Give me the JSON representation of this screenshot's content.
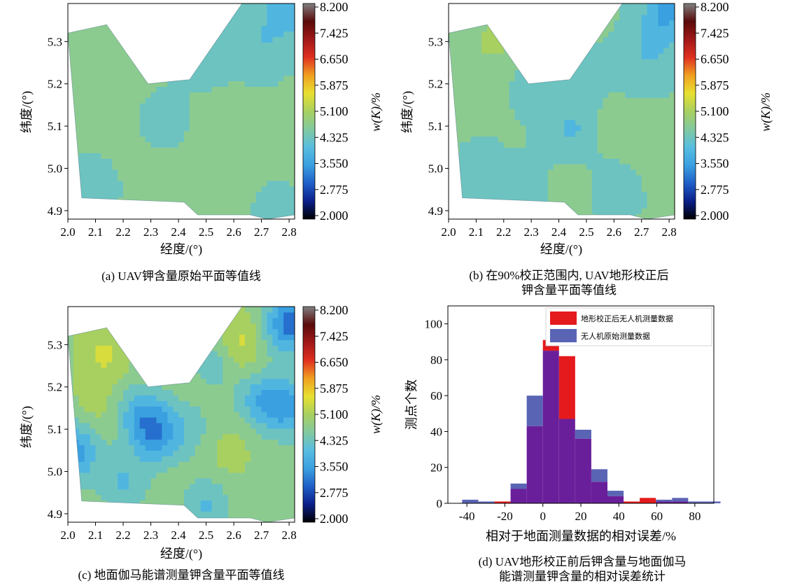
{
  "colors": {
    "colormap_stops": [
      "#000000",
      "#0b1f8a",
      "#1f5fc8",
      "#3aa0e0",
      "#57bde0",
      "#82c9a0",
      "#a8d060",
      "#e8e030",
      "#f0a020",
      "#e03020",
      "#a01818",
      "#5a0a0a",
      "#808080"
    ],
    "contour_line": "#456e7d",
    "hist_corrected": "#e41a1c",
    "hist_original": "#5a64b4",
    "hist_overlap": "#6a1f9a"
  },
  "panels": [
    {
      "caption": "(a) UAV钾含量原始平面等值线",
      "xlabel": "经度/(°)",
      "ylabel": "纬度/(°)",
      "cblabel": "w(K)/%",
      "xticks": [
        "2.0",
        "2.1",
        "2.2",
        "2.3",
        "2.4",
        "2.5",
        "2.6",
        "2.7",
        "2.8"
      ],
      "yticks": [
        "4.9",
        "5.0",
        "5.1",
        "5.2",
        "5.3"
      ],
      "cbticks": [
        "8.200",
        "7.425",
        "6.650",
        "5.875",
        "5.100",
        "4.325",
        "3.550",
        "2.775",
        "2.000"
      ]
    },
    {
      "caption": "(b) 在90%校正范围内, UAV地形校正后",
      "caption2": "钾含量平面等值线",
      "xlabel": "经度/(°)",
      "ylabel": "纬度/(°)",
      "cblabel": "w(K)/%",
      "xticks": [
        "2.0",
        "2.1",
        "2.2",
        "2.3",
        "2.4",
        "2.5",
        "2.6",
        "2.7",
        "2.8"
      ],
      "yticks": [
        "4.9",
        "5.0",
        "5.1",
        "5.2",
        "5.3"
      ],
      "cbticks": [
        "8.200",
        "7.425",
        "6.650",
        "5.875",
        "5.100",
        "4.325",
        "3.550",
        "2.775",
        "2.000"
      ]
    },
    {
      "caption": "(c) 地面伽马能谱测量钾含量平面等值线",
      "xlabel": "经度/(°)",
      "ylabel": "纬度/(°)",
      "cblabel": "w(K)/%",
      "xticks": [
        "2.0",
        "2.1",
        "2.2",
        "2.3",
        "2.4",
        "2.5",
        "2.6",
        "2.7",
        "2.8"
      ],
      "yticks": [
        "4.9",
        "5.0",
        "5.1",
        "5.2",
        "5.3"
      ],
      "cbticks": [
        "8.200",
        "7.425",
        "6.650",
        "5.875",
        "5.100",
        "4.325",
        "3.550",
        "2.775",
        "2.000"
      ]
    }
  ],
  "chart_data": [
    {
      "type": "heatmap",
      "panel": "a",
      "x_range": [
        2.0,
        2.82
      ],
      "y_range": [
        4.88,
        5.39
      ],
      "z_range": [
        2.0,
        8.2
      ],
      "boundary": [
        [
          2.0,
          5.32
        ],
        [
          2.14,
          5.34
        ],
        [
          2.29,
          5.2
        ],
        [
          2.44,
          5.21
        ],
        [
          2.63,
          5.39
        ],
        [
          2.82,
          5.39
        ],
        [
          2.82,
          4.89
        ],
        [
          2.72,
          4.88
        ],
        [
          2.66,
          4.89
        ],
        [
          2.47,
          4.89
        ],
        [
          2.42,
          4.92
        ],
        [
          2.05,
          4.93
        ]
      ],
      "z_base": 4.55,
      "features": [
        {
          "x": 2.17,
          "y": 5.25,
          "value": 4.7
        },
        {
          "x": 2.6,
          "y": 5.05,
          "value": 4.75
        },
        {
          "x": 2.35,
          "y": 5.12,
          "value": 4.45
        },
        {
          "x": 2.5,
          "y": 5.28,
          "value": 4.35
        },
        {
          "x": 2.08,
          "y": 4.95,
          "value": 4.4
        },
        {
          "x": 2.8,
          "y": 5.38,
          "value": 3.9
        },
        {
          "x": 2.7,
          "y": 5.3,
          "value": 4.2
        },
        {
          "x": 2.55,
          "y": 4.95,
          "value": 4.6
        },
        {
          "x": 2.75,
          "y": 4.9,
          "value": 4.45
        }
      ]
    },
    {
      "type": "heatmap",
      "panel": "b",
      "x_range": [
        2.0,
        2.82
      ],
      "y_range": [
        4.88,
        5.39
      ],
      "z_range": [
        2.0,
        8.2
      ],
      "boundary": [
        [
          2.0,
          5.32
        ],
        [
          2.14,
          5.34
        ],
        [
          2.29,
          5.2
        ],
        [
          2.44,
          5.21
        ],
        [
          2.63,
          5.39
        ],
        [
          2.82,
          5.39
        ],
        [
          2.82,
          4.89
        ],
        [
          2.72,
          4.88
        ],
        [
          2.66,
          4.89
        ],
        [
          2.47,
          4.89
        ],
        [
          2.42,
          4.92
        ],
        [
          2.05,
          4.93
        ]
      ],
      "z_base": 4.55,
      "features": [
        {
          "x": 2.16,
          "y": 5.3,
          "value": 5.0
        },
        {
          "x": 2.45,
          "y": 5.09,
          "value": 4.1
        },
        {
          "x": 2.33,
          "y": 5.2,
          "value": 4.3
        },
        {
          "x": 2.62,
          "y": 5.1,
          "value": 4.85
        },
        {
          "x": 2.5,
          "y": 5.2,
          "value": 4.4
        },
        {
          "x": 2.75,
          "y": 5.3,
          "value": 4.2
        },
        {
          "x": 2.8,
          "y": 5.38,
          "value": 3.7
        },
        {
          "x": 2.68,
          "y": 5.23,
          "value": 4.3
        },
        {
          "x": 2.12,
          "y": 4.99,
          "value": 4.4
        },
        {
          "x": 2.3,
          "y": 4.95,
          "value": 4.4
        },
        {
          "x": 2.6,
          "y": 4.96,
          "value": 4.3
        },
        {
          "x": 2.75,
          "y": 5.05,
          "value": 4.75
        },
        {
          "x": 2.45,
          "y": 4.97,
          "value": 4.7
        }
      ]
    },
    {
      "type": "heatmap",
      "panel": "c",
      "x_range": [
        2.0,
        2.82
      ],
      "y_range": [
        4.88,
        5.39
      ],
      "z_range": [
        2.0,
        8.2
      ],
      "boundary": [
        [
          2.0,
          5.32
        ],
        [
          2.14,
          5.34
        ],
        [
          2.29,
          5.2
        ],
        [
          2.44,
          5.21
        ],
        [
          2.63,
          5.39
        ],
        [
          2.82,
          5.39
        ],
        [
          2.82,
          4.89
        ],
        [
          2.72,
          4.88
        ],
        [
          2.66,
          4.89
        ],
        [
          2.47,
          4.89
        ],
        [
          2.42,
          4.92
        ],
        [
          2.05,
          4.93
        ]
      ],
      "z_base": 4.8,
      "features": [
        {
          "x": 2.32,
          "y": 5.09,
          "value": 3.6
        },
        {
          "x": 2.26,
          "y": 5.14,
          "value": 4.0
        },
        {
          "x": 2.1,
          "y": 5.15,
          "value": 5.1
        },
        {
          "x": 2.13,
          "y": 5.28,
          "value": 5.35
        },
        {
          "x": 2.61,
          "y": 5.3,
          "value": 5.6
        },
        {
          "x": 2.54,
          "y": 5.27,
          "value": 4.1
        },
        {
          "x": 2.7,
          "y": 5.17,
          "value": 3.9
        },
        {
          "x": 2.8,
          "y": 5.35,
          "value": 3.2
        },
        {
          "x": 2.8,
          "y": 5.15,
          "value": 3.8
        },
        {
          "x": 2.02,
          "y": 5.05,
          "value": 3.5
        },
        {
          "x": 2.5,
          "y": 4.92,
          "value": 4.1
        },
        {
          "x": 2.45,
          "y": 5.1,
          "value": 4.4
        },
        {
          "x": 2.58,
          "y": 5.05,
          "value": 5.1
        },
        {
          "x": 2.75,
          "y": 4.95,
          "value": 4.7
        },
        {
          "x": 2.2,
          "y": 4.97,
          "value": 4.1
        }
      ]
    },
    {
      "type": "bar",
      "panel": "d",
      "caption": "(d) UAV地形校正前后钾含量与地面伽马",
      "caption2": "能谱测量钾含量的相对误差统计",
      "xlabel": "相对于地面测量数据的相对误差/%",
      "ylabel": "测点个数",
      "xlim": [
        -50,
        90
      ],
      "ylim": [
        0,
        110
      ],
      "xticks": [
        -40,
        -20,
        0,
        20,
        40,
        60,
        80
      ],
      "yticks": [
        0,
        20,
        40,
        60,
        80,
        100
      ],
      "bin_width": 8.5,
      "bin_starts": [
        -42.5,
        -34,
        -25.5,
        -17,
        -8.5,
        0,
        8.5,
        17,
        25.5,
        34,
        42.5,
        51,
        59.5,
        68,
        76.5,
        85
      ],
      "legend_position": "top-right",
      "series": [
        {
          "name": "地形校正后无人机测量数据",
          "values": [
            0,
            0,
            1,
            8,
            43,
            91,
            82,
            36,
            12,
            4,
            1,
            3,
            1,
            1,
            0,
            0
          ]
        },
        {
          "name": "无人机原始测量数据",
          "values": [
            2,
            1,
            0,
            11,
            60,
            85,
            47,
            41,
            19,
            7,
            0,
            0,
            2,
            3,
            1,
            1
          ]
        }
      ]
    }
  ]
}
